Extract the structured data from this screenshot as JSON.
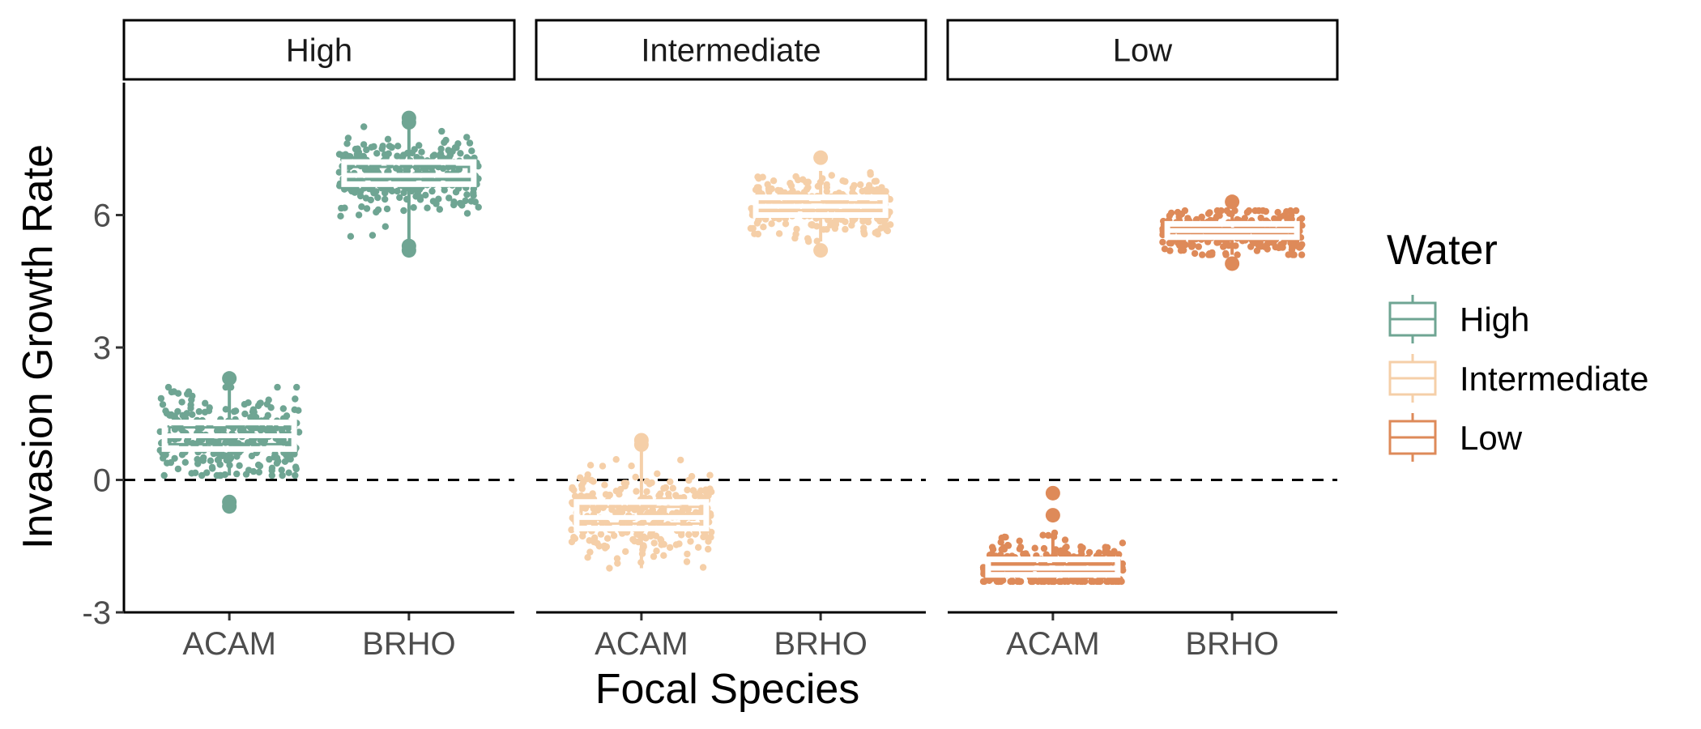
{
  "chart_data": {
    "type": "box",
    "title": "",
    "xlabel": "Focal Species",
    "ylabel": "Invasion Growth Rate",
    "ylim": [
      -3,
      9
    ],
    "yticks": [
      -3,
      0,
      3,
      6
    ],
    "reference_line": {
      "y": 0,
      "style": "dashed"
    },
    "facets": [
      "High",
      "Intermediate",
      "Low"
    ],
    "categories": [
      "ACAM",
      "BRHO"
    ],
    "legend": {
      "title": "Water",
      "position": "right",
      "entries": [
        {
          "label": "High",
          "color": "#6fa593"
        },
        {
          "label": "Intermediate",
          "color": "#f5cfa8"
        },
        {
          "label": "Low",
          "color": "#de8a59"
        }
      ]
    },
    "boxes": [
      {
        "facet": "High",
        "category": "ACAM",
        "min": 0.1,
        "q1": 0.7,
        "median": 1.0,
        "q3": 1.3,
        "max": 2.1,
        "outliers": [
          2.3,
          -0.5,
          -0.6
        ]
      },
      {
        "facet": "High",
        "category": "BRHO",
        "min": 5.4,
        "q1": 6.7,
        "median": 6.9,
        "q3": 7.2,
        "max": 8.0,
        "outliers": [
          8.2,
          8.1,
          5.2,
          5.3
        ]
      },
      {
        "facet": "Intermediate",
        "category": "ACAM",
        "min": -2.0,
        "q1": -1.1,
        "median": -0.85,
        "q3": -0.5,
        "max": 0.7,
        "outliers": [
          0.9,
          0.8
        ]
      },
      {
        "facet": "Intermediate",
        "category": "BRHO",
        "min": 5.4,
        "q1": 6.0,
        "median": 6.2,
        "q3": 6.4,
        "max": 7.0,
        "outliers": [
          7.3,
          5.2
        ]
      },
      {
        "facet": "Low",
        "category": "ACAM",
        "min": -2.3,
        "q1": -2.15,
        "median": -2.0,
        "q3": -1.8,
        "max": -1.2,
        "outliers": [
          -0.3,
          -0.8
        ]
      },
      {
        "facet": "Low",
        "category": "BRHO",
        "min": 5.1,
        "q1": 5.5,
        "median": 5.65,
        "q3": 5.8,
        "max": 6.1,
        "outliers": [
          6.3,
          4.9
        ]
      }
    ],
    "jitter_points_per_box": 320
  }
}
